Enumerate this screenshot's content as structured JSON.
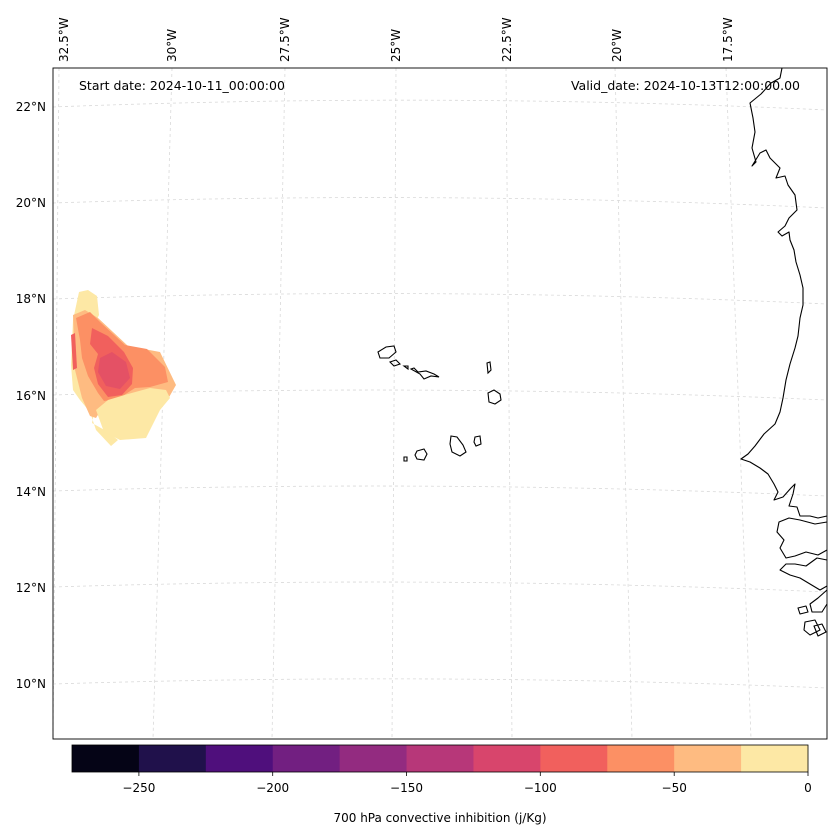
{
  "map": {
    "start_date": "Start date: 2024-10-11_00:00:00",
    "valid_date": "Valid_date: 2024-10-13T12:00:00.00",
    "lon_labels": [
      "32.5°W",
      "30°W",
      "27.5°W",
      "25°W",
      "22.5°W",
      "20°W",
      "17.5°W"
    ],
    "lat_labels": [
      "22°N",
      "20°N",
      "18°N",
      "16°N",
      "14°N",
      "12°N",
      "10°N"
    ],
    "region": {
      "lon_range": [
        -33,
        -15
      ],
      "lat_range": [
        9,
        22.5
      ]
    },
    "features": [
      "Cape Verde islands",
      "West African coastline (Mauritania, Senegal, Gambia, Guinea-Bissau)"
    ]
  },
  "colorbar": {
    "label": "700 hPa convective inhibition (j/Kg)",
    "ticks": [
      "−250",
      "−200",
      "−150",
      "−100",
      "−50",
      "0"
    ],
    "min": -275,
    "max": 0,
    "colors": [
      "#050416",
      "#20114b",
      "#4f0f7c",
      "#721f81",
      "#932b80",
      "#b73779",
      "#d8456c",
      "#f1605d",
      "#fc9064",
      "#febb81",
      "#fde8a5"
    ]
  },
  "colors": {
    "grid": "#d9d9d9",
    "coast": "#000000"
  }
}
